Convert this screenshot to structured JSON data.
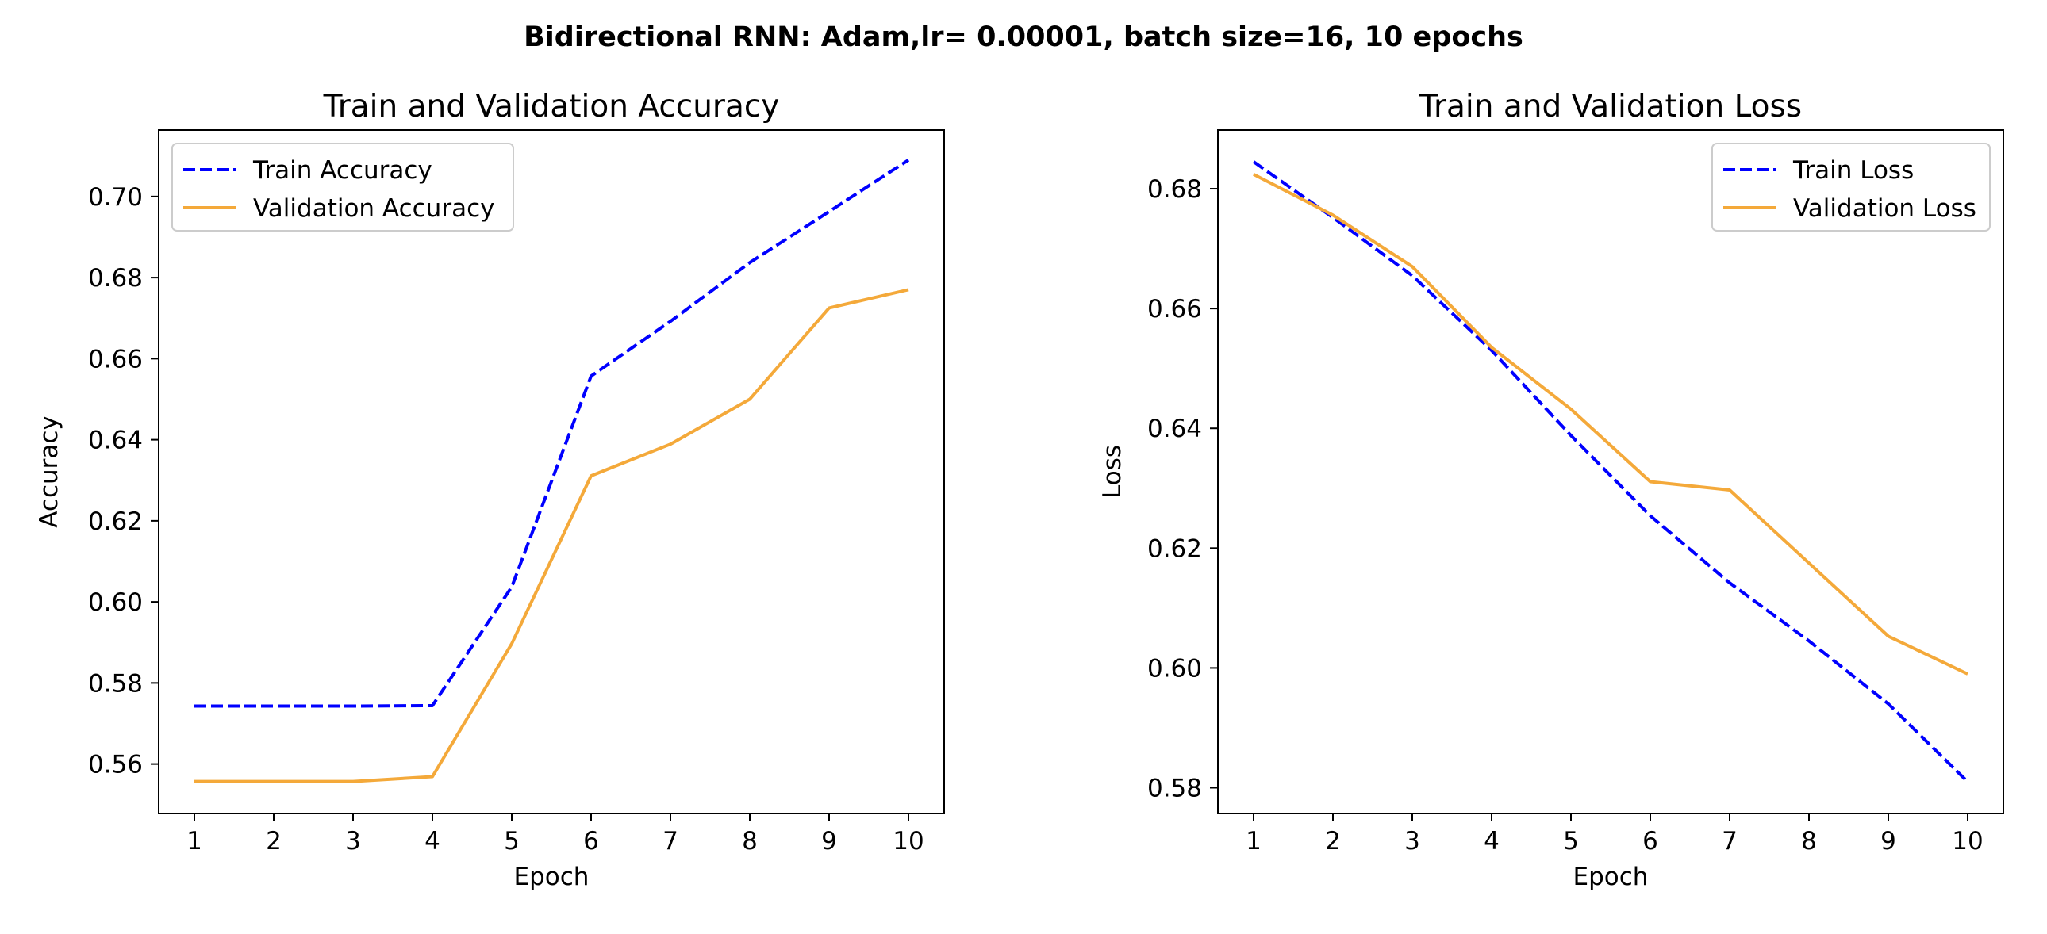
{
  "suptitle": "Bidirectional RNN: Adam,lr= 0.00001, batch size=16, 10 epochs",
  "chart_data": [
    {
      "type": "line",
      "title": "Train and Validation Accuracy",
      "xlabel": "Epoch",
      "ylabel": "Accuracy",
      "x": [
        1,
        2,
        3,
        4,
        5,
        6,
        7,
        8,
        9,
        10
      ],
      "xticks": [
        "1",
        "2",
        "3",
        "4",
        "5",
        "6",
        "7",
        "8",
        "9",
        "10"
      ],
      "yticks": [
        "0.56",
        "0.58",
        "0.60",
        "0.62",
        "0.64",
        "0.66",
        "0.68",
        "0.70"
      ],
      "ytick_values": [
        0.56,
        0.58,
        0.6,
        0.62,
        0.64,
        0.66,
        0.68,
        0.7
      ],
      "xlim": [
        0.55,
        10.45
      ],
      "ylim": [
        0.5478,
        0.7164
      ],
      "legend_position": "upper-left",
      "grid": false,
      "series": [
        {
          "name": "Train Accuracy",
          "color": "#0000ff",
          "dash": "dashed",
          "values": [
            0.5743,
            0.5743,
            0.5743,
            0.5744,
            0.6037,
            0.6557,
            0.6692,
            0.6837,
            0.6963,
            0.709
          ]
        },
        {
          "name": "Validation Accuracy",
          "color": "#f4a93a",
          "dash": "solid",
          "values": [
            0.5557,
            0.5557,
            0.5557,
            0.5569,
            0.5897,
            0.6311,
            0.6389,
            0.65,
            0.6725,
            0.677
          ]
        }
      ]
    },
    {
      "type": "line",
      "title": "Train and Validation Loss",
      "xlabel": "Epoch",
      "ylabel": "Loss",
      "x": [
        1,
        2,
        3,
        4,
        5,
        6,
        7,
        8,
        9,
        10
      ],
      "xticks": [
        "1",
        "2",
        "3",
        "4",
        "5",
        "6",
        "7",
        "8",
        "9",
        "10"
      ],
      "yticks": [
        "0.58",
        "0.60",
        "0.62",
        "0.64",
        "0.66",
        "0.68"
      ],
      "ytick_values": [
        0.58,
        0.6,
        0.62,
        0.64,
        0.66,
        0.68
      ],
      "xlim": [
        0.55,
        10.45
      ],
      "ylim": [
        0.5757,
        0.6898
      ],
      "legend_position": "upper-right",
      "grid": false,
      "series": [
        {
          "name": "Train Loss",
          "color": "#0000ff",
          "dash": "dashed",
          "values": [
            0.6845,
            0.6752,
            0.6655,
            0.653,
            0.6388,
            0.6254,
            0.6142,
            0.6045,
            0.594,
            0.581
          ]
        },
        {
          "name": "Validation Loss",
          "color": "#f4a93a",
          "dash": "solid",
          "values": [
            0.6824,
            0.6756,
            0.667,
            0.6535,
            0.6432,
            0.6311,
            0.6297,
            0.6175,
            0.6053,
            0.599
          ]
        }
      ]
    }
  ]
}
